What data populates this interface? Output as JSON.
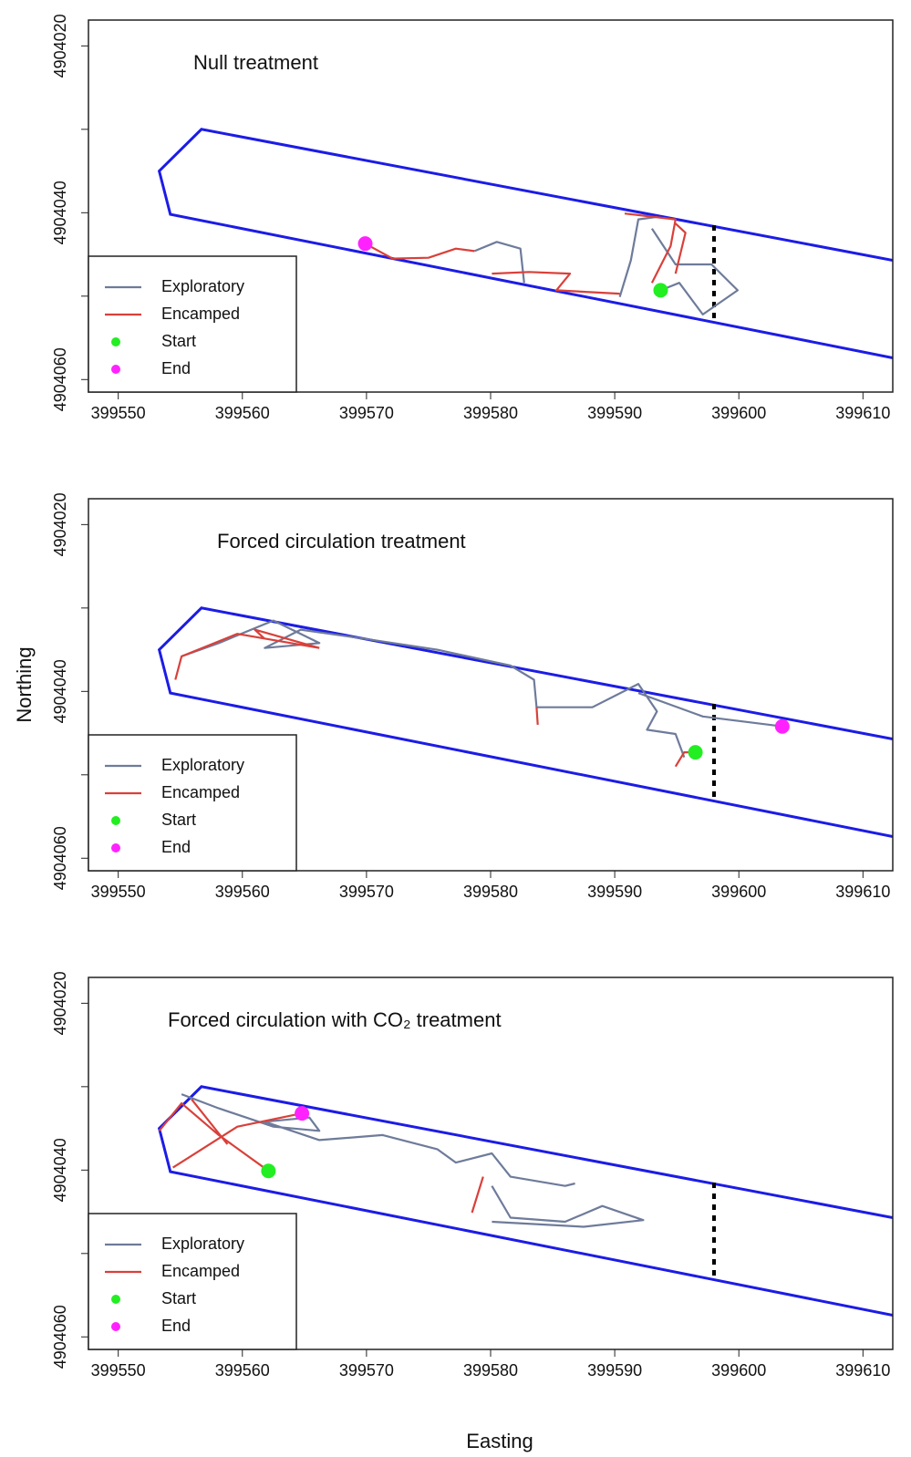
{
  "chart_data": [
    {
      "type": "line",
      "title": "Null treatment",
      "xlim": [
        399547.6,
        399612.4
      ],
      "ylim": [
        4904061.5,
        4904016.9
      ],
      "xticks": [
        399550,
        399560,
        399570,
        399580,
        399590,
        399600,
        399610
      ],
      "yticks": [
        4904020,
        4904040,
        4904060
      ],
      "yminor_ticks": [
        4904030,
        4904050
      ],
      "legend": "bottom-left",
      "boundary": {
        "color": "#1c1ce6",
        "x": [
          399612.4,
          399556.7,
          399553.3,
          399554.2,
          399612.4
        ],
        "y": [
          4904045.7,
          4904030.0,
          4904035.0,
          4904040.2,
          4904057.4
        ]
      },
      "transect": {
        "color": "#000000",
        "x": [
          399598,
          399598
        ],
        "y": [
          4904041.5,
          4904052.9
        ]
      },
      "series": [
        {
          "name": "Exploratory",
          "kind": "line",
          "color": "#6e7b9a",
          "x": [
            399578.7,
            399580.5,
            399582.4,
            399582.7,
            null,
            399590.4,
            399591.3,
            399591.9,
            399593.4,
            null,
            399593.0,
            399594.9,
            399597.8,
            399599.9,
            399597.1,
            399595.2,
            399593.7
          ],
          "y": [
            4904044.6,
            4904043.5,
            4904044.3,
            4904048.4,
            null,
            4904050.1,
            4904045.7,
            4904040.8,
            4904040.5,
            null,
            4904041.9,
            4904046.2,
            4904046.2,
            4904049.3,
            4904052.2,
            4904048.4,
            4904049.3
          ]
        },
        {
          "name": "Encamped",
          "kind": "line",
          "color": "#d9403a",
          "x": [
            399569.9,
            399572.1,
            399575.0,
            399577.2,
            399578.7,
            null,
            399580.1,
            399583.1,
            399586.4,
            399585.3,
            399590.4,
            null,
            399590.8,
            399594.9,
            399594.5,
            399593.0,
            null,
            399594.9,
            399595.7,
            399594.9
          ],
          "y": [
            4904043.7,
            4904045.5,
            4904045.4,
            4904044.3,
            4904044.6,
            null,
            4904047.3,
            4904047.1,
            4904047.3,
            4904049.3,
            4904049.7,
            null,
            4904040.1,
            4904040.8,
            4904044.0,
            4904048.4,
            null,
            4904041.3,
            4904042.4,
            4904047.3
          ]
        },
        {
          "name": "Start",
          "kind": "point",
          "color": "#22ee22",
          "x": [
            399593.7
          ],
          "y": [
            4904049.3
          ]
        },
        {
          "name": "End",
          "kind": "point",
          "color": "#ff22ff",
          "x": [
            399569.9
          ],
          "y": [
            4904043.7
          ]
        }
      ]
    },
    {
      "type": "line",
      "title": "Forced circulation treatment",
      "ylabel": "Northing",
      "xlim": [
        399547.6,
        399612.4
      ],
      "ylim": [
        4904061.5,
        4904016.9
      ],
      "xticks": [
        399550,
        399560,
        399570,
        399580,
        399590,
        399600,
        399610
      ],
      "yticks": [
        4904020,
        4904040,
        4904060
      ],
      "yminor_ticks": [
        4904030,
        4904050
      ],
      "legend": "bottom-left",
      "boundary": {
        "color": "#1c1ce6",
        "x": [
          399612.4,
          399556.7,
          399553.3,
          399554.2,
          399612.4
        ],
        "y": [
          4904045.7,
          4904030.0,
          4904035.0,
          4904040.2,
          4904057.4
        ]
      },
      "transect": {
        "color": "#000000",
        "x": [
          399598,
          399598
        ],
        "y": [
          4904041.5,
          4904052.9
        ]
      },
      "series": [
        {
          "name": "Exploratory",
          "kind": "line",
          "color": "#6e7b9a",
          "x": [
            399555.1,
            399558.1,
            399562.5,
            399566.2,
            399561.8,
            399564.7,
            399569.9,
            399575.7,
            399581.6,
            399583.5,
            399583.7,
            399588.2,
            399591.9,
            399593.4,
            399592.6,
            399594.9,
            399595.6,
            null,
            399591.9,
            399597.1,
            399603.5
          ],
          "y": [
            4904035.8,
            4904034.2,
            4904031.5,
            4904034.2,
            4904034.8,
            4904032.6,
            4904033.7,
            4904035.0,
            4904036.9,
            4904038.6,
            4904041.9,
            4904041.9,
            4904039.1,
            4904042.4,
            4904044.6,
            4904045.1,
            4904047.9,
            null,
            4904040.2,
            4904043.0,
            4904044.2
          ]
        },
        {
          "name": "Encamped",
          "kind": "line",
          "color": "#d9403a",
          "x": [
            399554.6,
            399555.1,
            399559.6,
            399566.2,
            null,
            399561.8,
            399561.0,
            399566.2,
            null,
            399583.7,
            399583.8,
            null,
            399594.9,
            399595.6,
            399596.5
          ],
          "y": [
            4904038.6,
            4904035.8,
            4904033.1,
            4904034.8,
            null,
            4904033.7,
            4904032.6,
            4904034.8,
            null,
            4904041.9,
            4904044.0,
            null,
            4904049.0,
            4904047.3,
            4904047.3
          ]
        },
        {
          "name": "Start",
          "kind": "point",
          "color": "#22ee22",
          "x": [
            399596.5
          ],
          "y": [
            4904047.3
          ]
        },
        {
          "name": "End",
          "kind": "point",
          "color": "#ff22ff",
          "x": [
            399603.5
          ],
          "y": [
            4904044.2
          ]
        }
      ]
    },
    {
      "type": "line",
      "title": "Forced circulation with CO₂ treatment",
      "xlabel": "Easting",
      "xlim": [
        399547.6,
        399612.4
      ],
      "ylim": [
        4904061.5,
        4904016.9
      ],
      "xticks": [
        399550,
        399560,
        399570,
        399580,
        399590,
        399600,
        399610
      ],
      "yticks": [
        4904020,
        4904040,
        4904060
      ],
      "yminor_ticks": [
        4904030,
        4904050
      ],
      "legend": "bottom-left",
      "boundary": {
        "color": "#1c1ce6",
        "x": [
          399612.4,
          399556.7,
          399553.3,
          399554.2,
          399612.4
        ],
        "y": [
          4904045.7,
          4904030.0,
          4904035.0,
          4904040.2,
          4904057.4
        ]
      },
      "transect": {
        "color": "#000000",
        "x": [
          399598,
          399598
        ],
        "y": [
          4904041.5,
          4904052.9
        ]
      },
      "series": [
        {
          "name": "Exploratory",
          "kind": "line",
          "color": "#6e7b9a",
          "x": [
            399555.1,
            399558.1,
            399562.5,
            399566.2,
            399565.4,
            399561.8,
            399566.2,
            399571.3,
            399575.7,
            399577.2,
            399580.1,
            399581.6,
            399586.0,
            399586.8,
            null,
            399580.1,
            399581.6,
            399586.0,
            399589.0,
            399592.3,
            399587.5,
            399580.1
          ],
          "y": [
            4904030.9,
            4904032.6,
            4904034.8,
            4904035.3,
            4904033.7,
            4904034.2,
            4904036.4,
            4904035.8,
            4904037.5,
            4904039.1,
            4904038.0,
            4904040.8,
            4904041.9,
            4904041.6,
            null,
            4904041.9,
            4904045.7,
            4904046.2,
            4904044.3,
            4904046.0,
            4904046.8,
            4904046.2
          ]
        },
        {
          "name": "Encamped",
          "kind": "line",
          "color": "#d9403a",
          "x": [
            399553.3,
            399555.1,
            399558.1,
            399562.1,
            null,
            399554.4,
            399559.6,
            399564.8,
            null,
            399555.9,
            399558.8,
            null,
            399579.4,
            399578.5
          ],
          "y": [
            4904035.3,
            4904032.0,
            4904035.8,
            4904040.1,
            null,
            4904039.7,
            4904034.8,
            4904033.2,
            null,
            4904031.5,
            4904036.9,
            null,
            4904040.8,
            4904045.1
          ]
        },
        {
          "name": "Start",
          "kind": "point",
          "color": "#22ee22",
          "x": [
            399562.1
          ],
          "y": [
            4904040.1
          ]
        },
        {
          "name": "End",
          "kind": "point",
          "color": "#ff22ff",
          "x": [
            399564.8
          ],
          "y": [
            4904033.2
          ]
        }
      ]
    }
  ]
}
